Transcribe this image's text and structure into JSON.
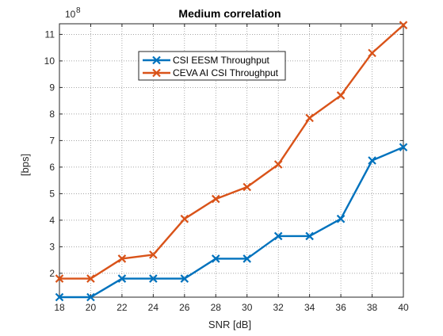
{
  "chart_data": {
    "type": "line",
    "title": "Medium correlation",
    "xlabel": "SNR [dB]",
    "ylabel": "[bps]",
    "y_exponent_label": "10",
    "y_exponent_power": "8",
    "x": [
      18,
      20,
      22,
      24,
      26,
      28,
      30,
      32,
      34,
      36,
      38,
      40
    ],
    "xlim": [
      18,
      40
    ],
    "ylim": [
      1.1,
      11.4
    ],
    "xticks": [
      18,
      20,
      22,
      24,
      26,
      28,
      30,
      32,
      34,
      36,
      38,
      40
    ],
    "yticks": [
      2,
      3,
      4,
      5,
      6,
      7,
      8,
      9,
      10,
      11
    ],
    "grid": true,
    "grid_style": "dotted",
    "legend_position": "upper-left-inside",
    "marker": "x",
    "series": [
      {
        "name": "CSI EESM Throughput",
        "color": "#0072BD",
        "values": [
          1.1,
          1.1,
          1.8,
          1.8,
          1.8,
          2.55,
          2.55,
          3.4,
          3.4,
          4.05,
          6.25,
          6.75
        ]
      },
      {
        "name": "CEVA AI CSI Throughput",
        "color": "#D95319",
        "values": [
          1.8,
          1.8,
          2.55,
          2.7,
          4.05,
          4.8,
          5.25,
          6.1,
          7.85,
          8.7,
          10.3,
          11.35
        ]
      }
    ]
  }
}
